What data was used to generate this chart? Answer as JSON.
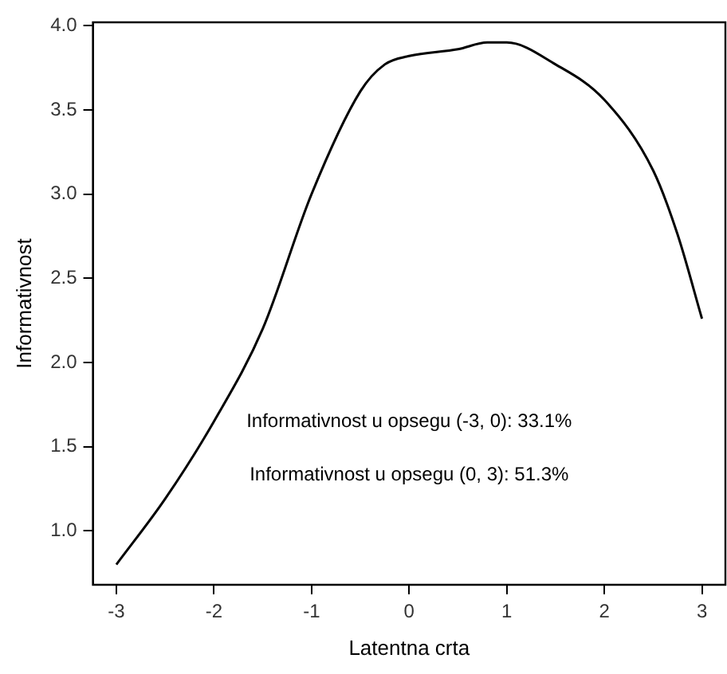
{
  "chart_data": {
    "type": "line",
    "xlabel": "Latentna crta",
    "ylabel": "Informativnost",
    "x": [
      -3,
      -2.5,
      -2,
      -1.5,
      -1,
      -0.5,
      -0.25,
      0,
      0.5,
      0.8,
      1,
      1.5,
      2,
      2.5,
      2.75,
      3
    ],
    "series": [
      {
        "color": "#000000",
        "values": [
          0.8,
          1.19,
          1.65,
          2.2,
          3.0,
          3.61,
          3.77,
          3.82,
          3.86,
          3.9,
          3.9,
          3.77,
          3.56,
          3.14,
          2.76,
          2.26
        ]
      }
    ],
    "xlim": [
      -3.24,
      3.24
    ],
    "ylim": [
      0.68,
      4.02
    ],
    "xticks": [
      -3,
      -2,
      -1,
      0,
      1,
      2,
      3
    ],
    "yticks": [
      {
        "value": 1,
        "label": "1.0"
      },
      {
        "value": 1.5,
        "label": "1.5"
      },
      {
        "value": 2,
        "label": "2.0"
      },
      {
        "value": 2.5,
        "label": "2.5"
      },
      {
        "value": 3,
        "label": "3.0"
      },
      {
        "value": 3.5,
        "label": "3.5"
      },
      {
        "value": 4,
        "label": "4.0"
      }
    ],
    "annotations": [
      "Informativnost u opsegu (-3, 0): 33.1%",
      "Informativnost u opsegu (0, 3): 51.3%"
    ],
    "grid": false,
    "legend": false,
    "marker": "none",
    "line_style": "solid"
  }
}
